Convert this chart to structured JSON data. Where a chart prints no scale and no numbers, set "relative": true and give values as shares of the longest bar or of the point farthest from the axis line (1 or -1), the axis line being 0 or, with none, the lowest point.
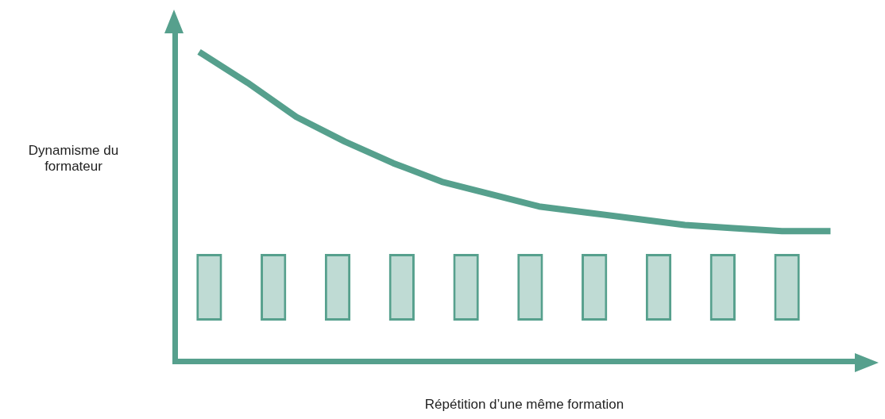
{
  "chart_data": [
    {
      "type": "line",
      "relative": true,
      "xlabel": "Répétition d’une même formation",
      "ylabel": "Dynamisme du formateur",
      "categories": [
        null,
        null,
        null,
        null,
        null,
        null,
        null,
        null,
        null,
        null,
        null,
        null,
        null,
        null
      ],
      "grid": false,
      "legend": false,
      "marker": "none",
      "series": [
        {
          "color": "#56a08d",
          "values": [
            1,
            0.9,
            0.79,
            0.71,
            0.64,
            0.58,
            0.54,
            0.5,
            0.48,
            0.46,
            0.44,
            0.43,
            0.42,
            0.42
          ]
        }
      ]
    },
    {
      "type": "bar",
      "relative": true,
      "categories": [
        null,
        null,
        null,
        null,
        null,
        null,
        null,
        null,
        null,
        null
      ],
      "grid": false,
      "legend": false,
      "series": [
        {
          "color": "#56a08d",
          "values": [
            1,
            1,
            1,
            1,
            1,
            1,
            1,
            1,
            1,
            1
          ]
        }
      ]
    }
  ]
}
